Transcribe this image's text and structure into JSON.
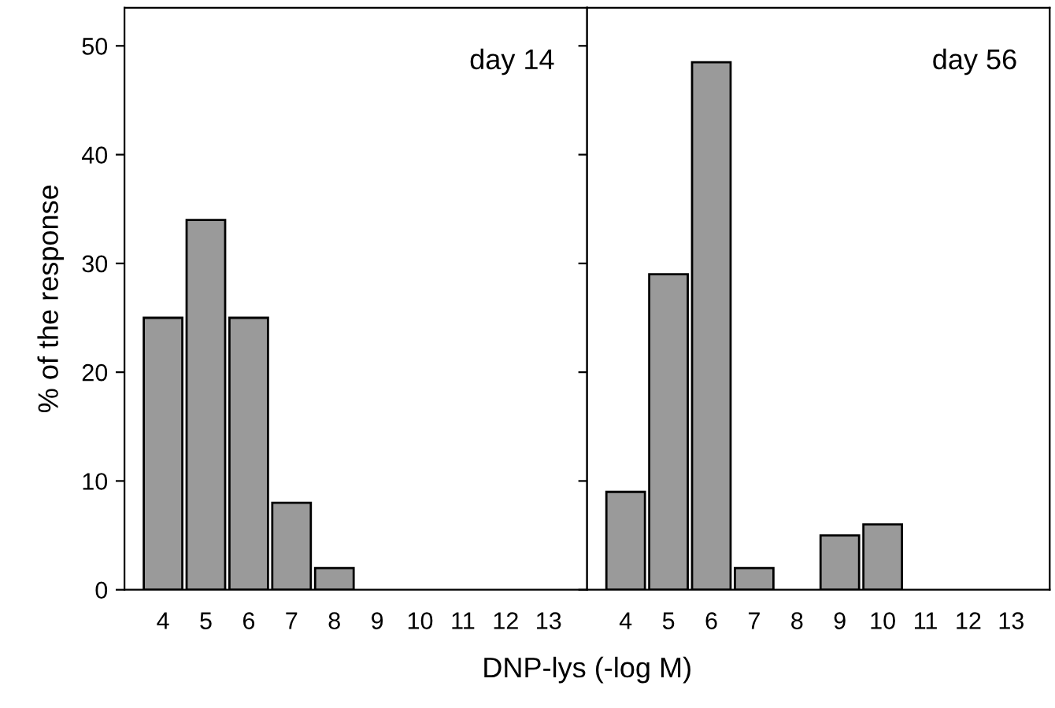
{
  "chart_data": [
    {
      "type": "bar",
      "title": "day 14",
      "xlabel": "DNP-lys (-log M)",
      "ylabel": "% of the response",
      "categories": [
        "4",
        "5",
        "6",
        "7",
        "8",
        "9",
        "10",
        "11",
        "12",
        "13"
      ],
      "values": [
        25,
        34,
        25,
        8,
        2,
        0,
        0,
        0,
        0,
        0
      ],
      "color": "#9a9a9a",
      "ylim": [
        0,
        53.5
      ],
      "yticks": [
        0,
        10,
        20,
        30,
        40,
        50
      ],
      "grid": false
    },
    {
      "type": "bar",
      "title": "day 56",
      "categories": [
        "4",
        "5",
        "6",
        "7",
        "8",
        "9",
        "10",
        "11",
        "12",
        "13"
      ],
      "values": [
        9,
        29,
        48.5,
        2,
        0,
        5,
        6,
        0,
        0,
        0
      ],
      "color": "#9a9a9a",
      "ylim": [
        0,
        53.5
      ],
      "yticks": [
        0,
        10,
        20,
        30,
        40,
        50
      ],
      "grid": false,
      "tick_labels": "x"
    }
  ]
}
